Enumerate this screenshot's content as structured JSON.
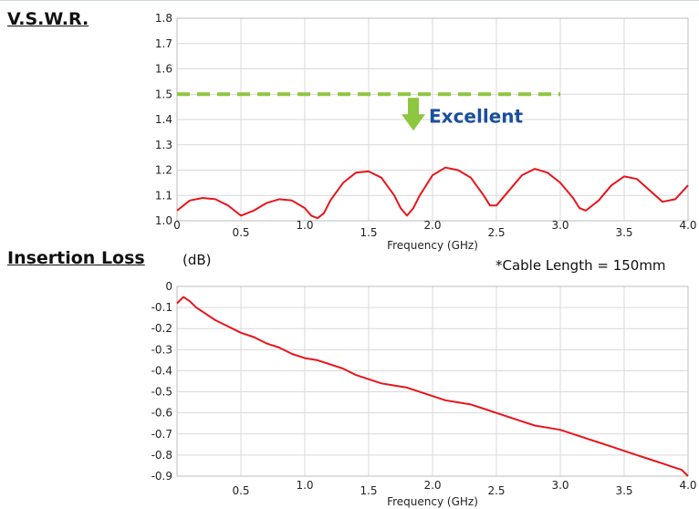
{
  "header": {
    "vswr_title": "V.S.W.R.",
    "il_title": "Insertion Loss",
    "il_unit": "(dB)",
    "cable_note": "*Cable Length = 150mm"
  },
  "colors": {
    "series": "#e8151b",
    "threshold": "#8dc63f",
    "arrow": "#8dc63f",
    "excellent_text": "#1b4f9b",
    "grid": "#d9d9d9",
    "frame": "#bdbdbd"
  },
  "chart_data": [
    {
      "type": "line",
      "title": "V.S.W.R.",
      "xlabel": "Frequency (GHz)",
      "ylabel": "",
      "xlim": [
        0,
        4.0
      ],
      "ylim": [
        1.0,
        1.8
      ],
      "x_ticks": [
        0,
        0.5,
        1.0,
        1.5,
        2.0,
        2.5,
        3.0,
        3.5,
        4.0
      ],
      "x_tick_labels": [
        "0",
        "0.5",
        "1.0",
        "1.5",
        "2.0",
        "2.5",
        "3.0",
        "3.5",
        "4.0"
      ],
      "y_ticks": [
        1.0,
        1.1,
        1.2,
        1.3,
        1.4,
        1.5,
        1.6,
        1.7,
        1.8
      ],
      "y_tick_labels": [
        "1.0",
        "1.1",
        "1.2",
        "1.3",
        "1.4",
        "1.5",
        "1.6",
        "1.7",
        "1.8"
      ],
      "grid": true,
      "threshold": {
        "y": 1.5,
        "x_range": [
          0,
          3.0
        ],
        "label": "Excellent"
      },
      "series": [
        {
          "x": [
            0,
            0.05,
            0.1,
            0.2,
            0.3,
            0.4,
            0.5,
            0.6,
            0.7,
            0.8,
            0.9,
            1.0,
            1.05,
            1.1,
            1.15,
            1.2,
            1.3,
            1.4,
            1.5,
            1.6,
            1.7,
            1.75,
            1.8,
            1.85,
            1.9,
            2.0,
            2.1,
            2.2,
            2.3,
            2.4,
            2.45,
            2.5,
            2.6,
            2.7,
            2.8,
            2.9,
            3.0,
            3.1,
            3.15,
            3.2,
            3.3,
            3.4,
            3.5,
            3.6,
            3.7,
            3.8,
            3.9,
            4.0
          ],
          "y": [
            1.04,
            1.06,
            1.08,
            1.09,
            1.085,
            1.06,
            1.02,
            1.04,
            1.07,
            1.085,
            1.08,
            1.05,
            1.02,
            1.01,
            1.03,
            1.08,
            1.15,
            1.19,
            1.195,
            1.17,
            1.1,
            1.05,
            1.02,
            1.05,
            1.1,
            1.18,
            1.21,
            1.2,
            1.17,
            1.1,
            1.06,
            1.06,
            1.12,
            1.18,
            1.205,
            1.19,
            1.15,
            1.09,
            1.05,
            1.04,
            1.08,
            1.14,
            1.175,
            1.165,
            1.12,
            1.075,
            1.085,
            1.14
          ]
        }
      ]
    },
    {
      "type": "line",
      "title": "Insertion Loss",
      "xlabel": "Frequency (GHz)",
      "ylabel": "(dB)",
      "xlim": [
        0,
        4.0
      ],
      "ylim": [
        -0.9,
        0
      ],
      "x_ticks": [
        0.5,
        1.0,
        1.5,
        2.0,
        2.5,
        3.0,
        3.5,
        4.0
      ],
      "x_tick_labels": [
        "0.5",
        "1.0",
        "1.5",
        "2.0",
        "2.5",
        "3.0",
        "3.5",
        "4.0"
      ],
      "y_ticks": [
        0,
        -0.1,
        -0.2,
        -0.3,
        -0.4,
        -0.5,
        -0.6,
        -0.7,
        -0.8,
        -0.9
      ],
      "y_tick_labels": [
        "0",
        "-0.1",
        "-0.2",
        "-0.3",
        "-0.4",
        "-0.5",
        "-0.6",
        "-0.7",
        "-0.8",
        "-0.9"
      ],
      "grid": true,
      "series": [
        {
          "x": [
            0,
            0.05,
            0.1,
            0.15,
            0.2,
            0.3,
            0.4,
            0.5,
            0.6,
            0.7,
            0.8,
            0.9,
            1.0,
            1.1,
            1.2,
            1.3,
            1.4,
            1.5,
            1.6,
            1.7,
            1.8,
            1.9,
            2.0,
            2.1,
            2.2,
            2.3,
            2.4,
            2.5,
            2.6,
            2.7,
            2.8,
            2.9,
            3.0,
            3.1,
            3.2,
            3.3,
            3.4,
            3.5,
            3.6,
            3.7,
            3.8,
            3.9,
            3.95,
            4.0
          ],
          "y": [
            -0.08,
            -0.05,
            -0.07,
            -0.1,
            -0.12,
            -0.16,
            -0.19,
            -0.22,
            -0.24,
            -0.27,
            -0.29,
            -0.32,
            -0.34,
            -0.35,
            -0.37,
            -0.39,
            -0.42,
            -0.44,
            -0.46,
            -0.47,
            -0.48,
            -0.5,
            -0.52,
            -0.54,
            -0.55,
            -0.56,
            -0.58,
            -0.6,
            -0.62,
            -0.64,
            -0.66,
            -0.67,
            -0.68,
            -0.7,
            -0.72,
            -0.74,
            -0.76,
            -0.78,
            -0.8,
            -0.82,
            -0.84,
            -0.86,
            -0.87,
            -0.9
          ]
        }
      ]
    }
  ]
}
